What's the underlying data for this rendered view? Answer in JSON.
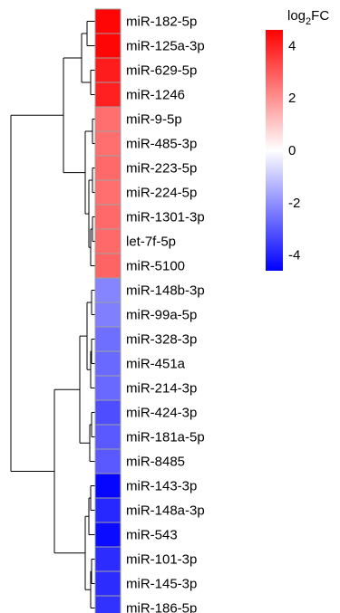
{
  "chart_data": {
    "type": "heatmap",
    "title": "",
    "rows": [
      {
        "label": "miR-182-5p",
        "value": 4.5
      },
      {
        "label": "miR-125a-3p",
        "value": 4.5
      },
      {
        "label": "miR-629-5p",
        "value": 4.1
      },
      {
        "label": "miR-1246",
        "value": 4.0
      },
      {
        "label": "miR-9-5p",
        "value": 2.6
      },
      {
        "label": "miR-485-3p",
        "value": 2.6
      },
      {
        "label": "miR-223-5p",
        "value": 2.7
      },
      {
        "label": "miR-224-5p",
        "value": 2.6
      },
      {
        "label": "miR-1301-3p",
        "value": 2.7
      },
      {
        "label": "let-7f-5p",
        "value": 2.7
      },
      {
        "label": "miR-5100",
        "value": 2.8
      },
      {
        "label": "miR-148b-3p",
        "value": -2.2
      },
      {
        "label": "miR-99a-5p",
        "value": -2.3
      },
      {
        "label": "miR-328-3p",
        "value": -2.6
      },
      {
        "label": "miR-451a",
        "value": -2.7
      },
      {
        "label": "miR-214-3p",
        "value": -2.7
      },
      {
        "label": "miR-424-3p",
        "value": -3.2
      },
      {
        "label": "miR-181a-5p",
        "value": -3.0
      },
      {
        "label": "miR-8485",
        "value": -3.0
      },
      {
        "label": "miR-143-3p",
        "value": -4.5
      },
      {
        "label": "miR-148a-3p",
        "value": -3.9
      },
      {
        "label": "miR-543",
        "value": -4.4
      },
      {
        "label": "miR-101-3p",
        "value": -3.8
      },
      {
        "label": "miR-145-3p",
        "value": -3.8
      },
      {
        "label": "miR-186-5p",
        "value": -3.7
      }
    ],
    "dendrogram": "hierarchical clustering of rows (left side)",
    "colorbar": {
      "title_main": "log",
      "title_sub": "2",
      "title_suffix": "FC",
      "range": [
        -4.6,
        4.6
      ],
      "ticks": [
        4,
        2,
        0,
        -2,
        -4
      ],
      "tick_labels": [
        "4",
        "2",
        "0",
        "-2",
        "-4"
      ],
      "colors": {
        "high": "#ff0000",
        "mid": "#ffffff",
        "low": "#0000ff"
      }
    },
    "cell_border_color": "#a0a0a0"
  }
}
